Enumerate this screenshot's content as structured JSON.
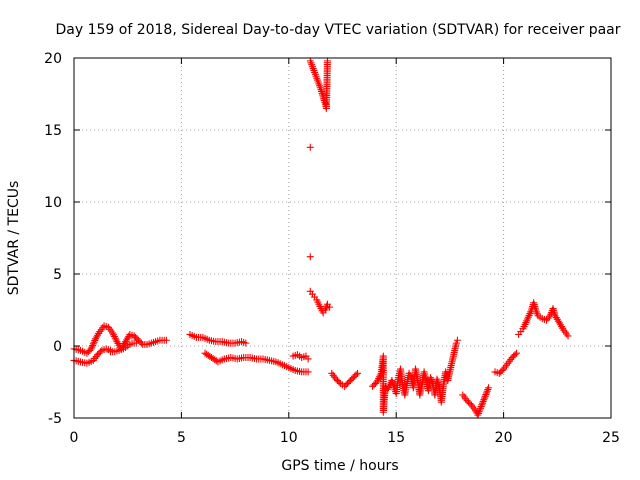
{
  "chart_data": {
    "type": "scatter",
    "title": "Day 159 of 2018, Sidereal Day-to-day VTEC variation (SDTVAR) for receiver paar",
    "xlabel": "GPS time / hours",
    "ylabel": "SDTVAR / TECUs",
    "xlim": [
      0,
      25
    ],
    "ylim": [
      -5,
      20
    ],
    "xticks": [
      0,
      5,
      10,
      15,
      20,
      25
    ],
    "yticks": [
      -5,
      0,
      5,
      10,
      15,
      20
    ],
    "xtick_labels": [
      "0",
      "5",
      "10",
      "15",
      "20",
      "25"
    ],
    "ytick_labels": [
      "-5",
      "0",
      "5",
      "10",
      "15",
      "20"
    ],
    "grid": true,
    "marker": "+",
    "color": "#ff0000",
    "series": [
      {
        "name": "SDTVAR",
        "segments": [
          [
            [
              0.0,
              -1.0
            ],
            [
              0.3,
              -1.1
            ],
            [
              0.6,
              -1.2
            ],
            [
              0.9,
              -1.0
            ],
            [
              1.1,
              -0.6
            ],
            [
              1.3,
              -0.3
            ],
            [
              1.5,
              -0.2
            ],
            [
              1.7,
              -0.3
            ]
          ],
          [
            [
              0.0,
              -0.2
            ],
            [
              0.3,
              -0.3
            ],
            [
              0.6,
              -0.5
            ],
            [
              0.8,
              -0.2
            ],
            [
              1.0,
              0.5
            ],
            [
              1.2,
              1.0
            ],
            [
              1.4,
              1.4
            ],
            [
              1.6,
              1.3
            ],
            [
              1.8,
              0.9
            ],
            [
              2.0,
              0.3
            ],
            [
              2.2,
              -0.2
            ],
            [
              2.4,
              0.3
            ],
            [
              2.6,
              0.8
            ],
            [
              2.8,
              0.7
            ],
            [
              3.0,
              0.4
            ],
            [
              3.2,
              0.1
            ],
            [
              3.4,
              0.1
            ],
            [
              3.6,
              0.2
            ],
            [
              3.8,
              0.3
            ],
            [
              4.0,
              0.4
            ],
            [
              4.3,
              0.4
            ]
          ],
          [
            [
              1.7,
              -0.4
            ],
            [
              1.9,
              -0.4
            ],
            [
              2.1,
              -0.3
            ],
            [
              2.3,
              -0.2
            ],
            [
              2.5,
              0.0
            ],
            [
              2.7,
              0.2
            ],
            [
              2.9,
              0.2
            ]
          ],
          [
            [
              5.4,
              0.8
            ],
            [
              5.7,
              0.6
            ],
            [
              6.0,
              0.6
            ],
            [
              6.3,
              0.4
            ],
            [
              6.6,
              0.3
            ],
            [
              6.9,
              0.3
            ],
            [
              7.2,
              0.2
            ],
            [
              7.5,
              0.2
            ],
            [
              7.8,
              0.3
            ],
            [
              8.0,
              0.2
            ]
          ],
          [
            [
              6.1,
              -0.5
            ],
            [
              6.4,
              -0.8
            ],
            [
              6.7,
              -1.1
            ],
            [
              7.0,
              -0.9
            ],
            [
              7.3,
              -0.8
            ],
            [
              7.6,
              -0.9
            ],
            [
              7.9,
              -0.8
            ],
            [
              8.2,
              -0.8
            ],
            [
              8.5,
              -0.9
            ],
            [
              8.8,
              -0.9
            ],
            [
              9.1,
              -1.0
            ],
            [
              9.4,
              -1.1
            ],
            [
              9.7,
              -1.3
            ],
            [
              10.0,
              -1.5
            ],
            [
              10.3,
              -1.7
            ],
            [
              10.6,
              -1.8
            ],
            [
              10.9,
              -1.8
            ]
          ],
          [
            [
              10.2,
              -0.7
            ],
            [
              10.4,
              -0.6
            ],
            [
              10.6,
              -0.8
            ],
            [
              10.8,
              -0.7
            ],
            [
              10.9,
              -0.9
            ]
          ],
          [
            [
              11.0,
              19.8
            ],
            [
              11.1,
              19.4
            ],
            [
              11.2,
              19.0
            ],
            [
              11.3,
              18.6
            ],
            [
              11.4,
              18.2
            ],
            [
              11.5,
              17.8
            ],
            [
              11.6,
              17.3
            ],
            [
              11.7,
              16.8
            ],
            [
              11.75,
              16.5
            ],
            [
              11.8,
              19.8
            ]
          ],
          [
            [
              11.0,
              13.8
            ],
            [
              11.0,
              6.2
            ]
          ],
          [
            [
              11.0,
              3.8
            ],
            [
              11.1,
              3.6
            ],
            [
              11.2,
              3.4
            ],
            [
              11.3,
              3.2
            ],
            [
              11.4,
              2.9
            ],
            [
              11.5,
              2.6
            ],
            [
              11.6,
              2.3
            ],
            [
              11.7,
              2.5
            ],
            [
              11.8,
              2.9
            ],
            [
              11.9,
              2.7
            ]
          ],
          [
            [
              12.0,
              -1.9
            ],
            [
              12.2,
              -2.3
            ],
            [
              12.4,
              -2.6
            ],
            [
              12.6,
              -2.8
            ],
            [
              12.8,
              -2.5
            ],
            [
              13.0,
              -2.2
            ],
            [
              13.2,
              -1.9
            ]
          ],
          [
            [
              13.9,
              -2.8
            ],
            [
              14.1,
              -2.5
            ],
            [
              14.3,
              -1.9
            ],
            [
              14.4,
              -0.7
            ],
            [
              14.4,
              -4.6
            ],
            [
              14.5,
              -2.8
            ],
            [
              14.6,
              -3.0
            ],
            [
              14.8,
              -2.4
            ],
            [
              15.0,
              -3.3
            ],
            [
              15.1,
              -2.2
            ],
            [
              15.2,
              -1.6
            ],
            [
              15.3,
              -2.8
            ],
            [
              15.4,
              -3.4
            ],
            [
              15.5,
              -2.6
            ],
            [
              15.6,
              -1.9
            ],
            [
              15.7,
              -2.2
            ],
            [
              15.8,
              -2.9
            ],
            [
              15.9,
              -1.6
            ],
            [
              16.0,
              -2.4
            ],
            [
              16.1,
              -3.4
            ],
            [
              16.2,
              -2.7
            ],
            [
              16.3,
              -1.8
            ],
            [
              16.4,
              -2.4
            ],
            [
              16.5,
              -3.1
            ],
            [
              16.6,
              -2.2
            ],
            [
              16.7,
              -2.6
            ],
            [
              16.8,
              -3.4
            ],
            [
              16.9,
              -2.3
            ],
            [
              17.0,
              -2.8
            ],
            [
              17.1,
              -3.9
            ],
            [
              17.2,
              -2.7
            ],
            [
              17.3,
              -1.8
            ],
            [
              17.4,
              -2.4
            ],
            [
              17.6,
              -1.1
            ],
            [
              17.8,
              0.2
            ],
            [
              17.85,
              0.4
            ]
          ],
          [
            [
              18.1,
              -3.4
            ],
            [
              18.3,
              -3.8
            ],
            [
              18.5,
              -4.1
            ],
            [
              18.7,
              -4.5
            ],
            [
              18.8,
              -4.8
            ],
            [
              19.3,
              -2.9
            ]
          ],
          [
            [
              19.6,
              -1.8
            ],
            [
              19.8,
              -1.9
            ],
            [
              20.0,
              -1.6
            ],
            [
              20.2,
              -1.2
            ],
            [
              20.4,
              -0.8
            ],
            [
              20.6,
              -0.5
            ]
          ],
          [
            [
              20.7,
              0.8
            ],
            [
              20.8,
              1.0
            ],
            [
              20.9,
              1.2
            ],
            [
              21.0,
              1.5
            ],
            [
              21.3,
              2.5
            ],
            [
              21.4,
              3.0
            ],
            [
              21.5,
              2.5
            ],
            [
              21.6,
              2.1
            ],
            [
              21.8,
              1.9
            ],
            [
              22.0,
              1.8
            ],
            [
              22.2,
              2.2
            ],
            [
              22.3,
              2.6
            ],
            [
              22.4,
              2.1
            ],
            [
              22.6,
              1.6
            ],
            [
              22.8,
              1.1
            ],
            [
              23.0,
              0.7
            ]
          ]
        ]
      }
    ]
  }
}
